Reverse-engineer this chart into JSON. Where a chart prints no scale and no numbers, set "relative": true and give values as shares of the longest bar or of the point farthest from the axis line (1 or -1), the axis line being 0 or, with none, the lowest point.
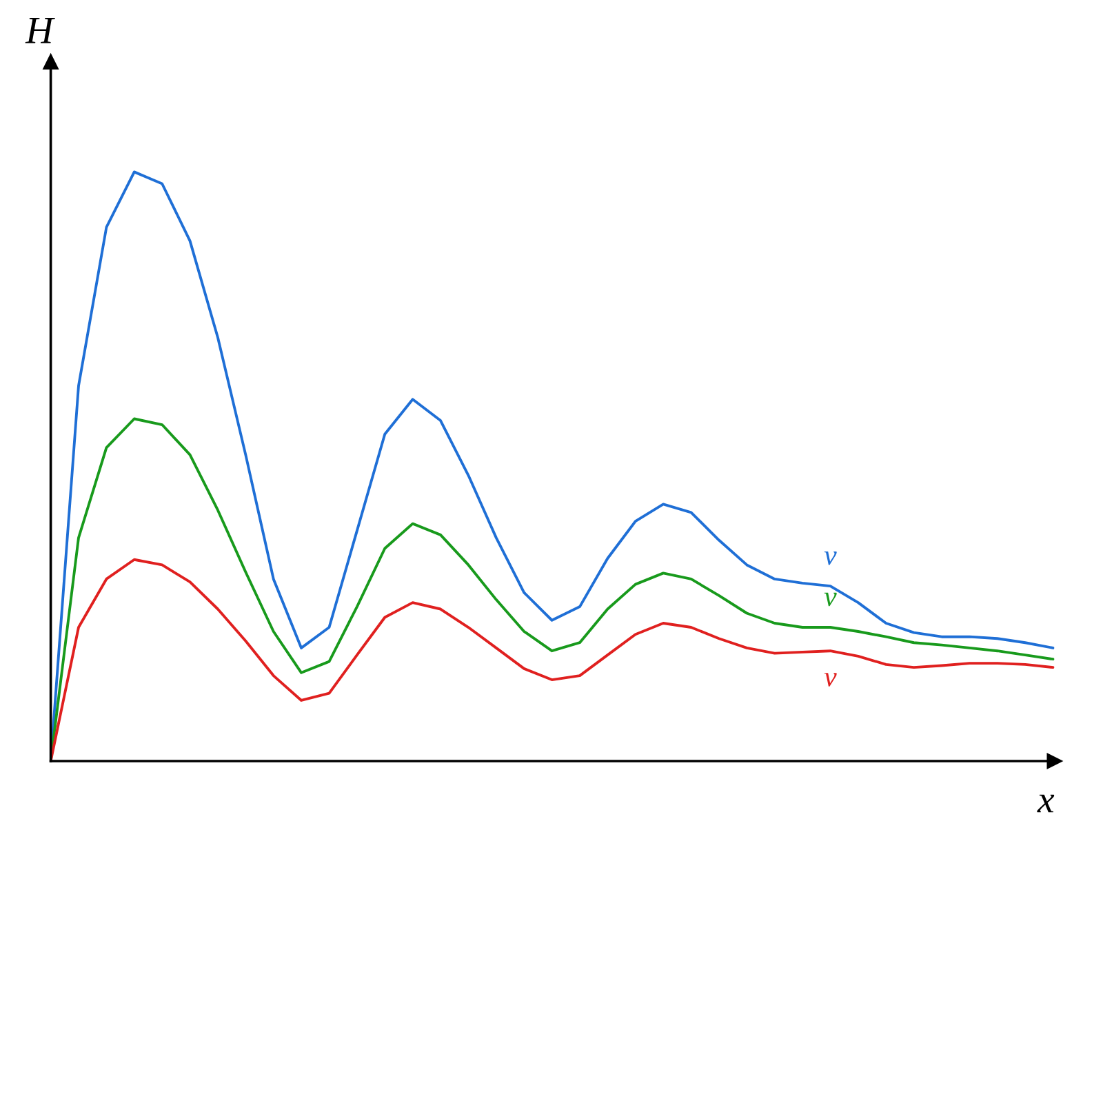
{
  "chart_data": {
    "type": "line",
    "relative": true,
    "xlabel": "x",
    "ylabel": "H",
    "legend": false,
    "marker": "none",
    "line_style": "solid",
    "categories": [
      null,
      null,
      null,
      null,
      null,
      null,
      null,
      null,
      null,
      null,
      null,
      null,
      null,
      null,
      null,
      null,
      null,
      null,
      null,
      null,
      null,
      null,
      null,
      null,
      null,
      null,
      null,
      null,
      null,
      null,
      null,
      null,
      null,
      null,
      null,
      null,
      null
    ],
    "series": [
      {
        "name": "v",
        "color": "#1f6fd6",
        "values": [
          0,
          0.637,
          0.906,
          1.0,
          0.98,
          0.883,
          0.719,
          0.52,
          0.309,
          0.192,
          0.227,
          0.391,
          0.555,
          0.614,
          0.578,
          0.485,
          0.379,
          0.286,
          0.239,
          0.262,
          0.344,
          0.407,
          0.436,
          0.422,
          0.375,
          0.333,
          0.309,
          0.302,
          0.297,
          0.269,
          0.234,
          0.218,
          0.211,
          0.211,
          0.208,
          0.201,
          0.192
        ]
      },
      {
        "name": "v",
        "color": "#189a1c",
        "values": [
          0,
          0.379,
          0.532,
          0.581,
          0.571,
          0.52,
          0.426,
          0.321,
          0.22,
          0.15,
          0.169,
          0.262,
          0.361,
          0.403,
          0.384,
          0.333,
          0.274,
          0.22,
          0.187,
          0.201,
          0.258,
          0.3,
          0.319,
          0.309,
          0.281,
          0.251,
          0.234,
          0.227,
          0.227,
          0.22,
          0.211,
          0.201,
          0.197,
          0.192,
          0.187,
          0.18,
          0.173
        ]
      },
      {
        "name": "v",
        "color": "#e0201f",
        "values": [
          0,
          0.227,
          0.309,
          0.342,
          0.333,
          0.304,
          0.258,
          0.204,
          0.145,
          0.103,
          0.115,
          0.18,
          0.244,
          0.269,
          0.258,
          0.227,
          0.192,
          0.157,
          0.138,
          0.145,
          0.18,
          0.215,
          0.234,
          0.227,
          0.208,
          0.192,
          0.183,
          0.185,
          0.187,
          0.178,
          0.164,
          0.159,
          0.162,
          0.166,
          0.166,
          0.164,
          0.159
        ]
      }
    ]
  }
}
